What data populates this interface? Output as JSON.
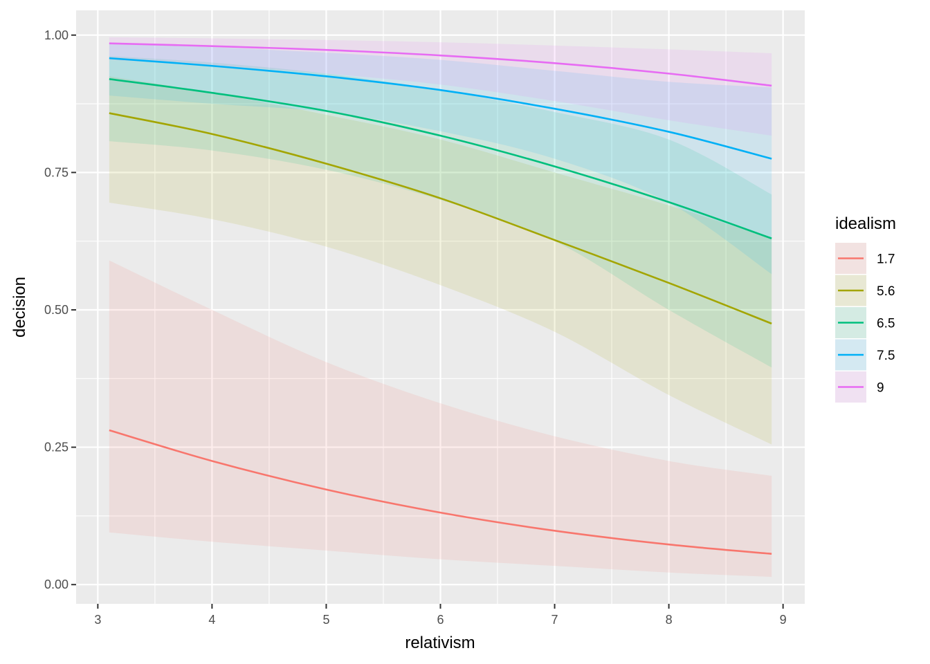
{
  "chart_data": {
    "type": "line",
    "xlabel": "relativism",
    "ylabel": "decision",
    "xlim": [
      2.81,
      9.19
    ],
    "ylim": [
      -0.035,
      1.045
    ],
    "x_ticks": [
      3,
      4,
      5,
      6,
      7,
      8,
      9
    ],
    "y_ticks": [
      0.0,
      0.25,
      0.5,
      0.75,
      1.0
    ],
    "x_tick_labels": [
      "3",
      "4",
      "5",
      "6",
      "7",
      "8",
      "9"
    ],
    "y_tick_labels": [
      "0.00",
      "0.25",
      "0.50",
      "0.75",
      "1.00"
    ],
    "grid": true,
    "legend": {
      "title": "idealism",
      "position": "right"
    },
    "x": [
      3.1,
      4,
      5,
      6,
      7,
      8,
      8.9
    ],
    "series": [
      {
        "name": "1.7",
        "color": "#F8766D",
        "values": [
          0.281,
          0.225,
          0.173,
          0.131,
          0.098,
          0.073,
          0.056
        ],
        "lower": [
          0.095,
          0.078,
          0.062,
          0.046,
          0.034,
          0.022,
          0.014
        ],
        "upper": [
          0.59,
          0.5,
          0.405,
          0.33,
          0.27,
          0.225,
          0.198
        ]
      },
      {
        "name": "5.6",
        "color": "#A3A500",
        "values": [
          0.858,
          0.82,
          0.766,
          0.703,
          0.627,
          0.549,
          0.475
        ],
        "lower": [
          0.695,
          0.665,
          0.615,
          0.545,
          0.46,
          0.345,
          0.255
        ],
        "upper": [
          0.925,
          0.895,
          0.855,
          0.81,
          0.75,
          0.69,
          0.63
        ]
      },
      {
        "name": "6.5",
        "color": "#00BF7D",
        "values": [
          0.92,
          0.895,
          0.862,
          0.817,
          0.761,
          0.696,
          0.63
        ],
        "lower": [
          0.807,
          0.79,
          0.755,
          0.7,
          0.625,
          0.5,
          0.395
        ],
        "upper": [
          0.962,
          0.95,
          0.93,
          0.9,
          0.86,
          0.81,
          0.71
        ]
      },
      {
        "name": "7.5",
        "color": "#00B0F6",
        "values": [
          0.958,
          0.944,
          0.925,
          0.9,
          0.866,
          0.824,
          0.775
        ],
        "lower": [
          0.89,
          0.875,
          0.86,
          0.825,
          0.775,
          0.695,
          0.565
        ],
        "upper": [
          0.985,
          0.978,
          0.968,
          0.955,
          0.935,
          0.915,
          0.905
        ]
      },
      {
        "name": "9",
        "color": "#E76BF3",
        "values": [
          0.985,
          0.98,
          0.973,
          0.963,
          0.949,
          0.93,
          0.908
        ],
        "lower": [
          0.955,
          0.945,
          0.93,
          0.91,
          0.88,
          0.845,
          0.817
        ],
        "upper": [
          0.996,
          0.994,
          0.991,
          0.987,
          0.981,
          0.974,
          0.967
        ]
      }
    ]
  }
}
